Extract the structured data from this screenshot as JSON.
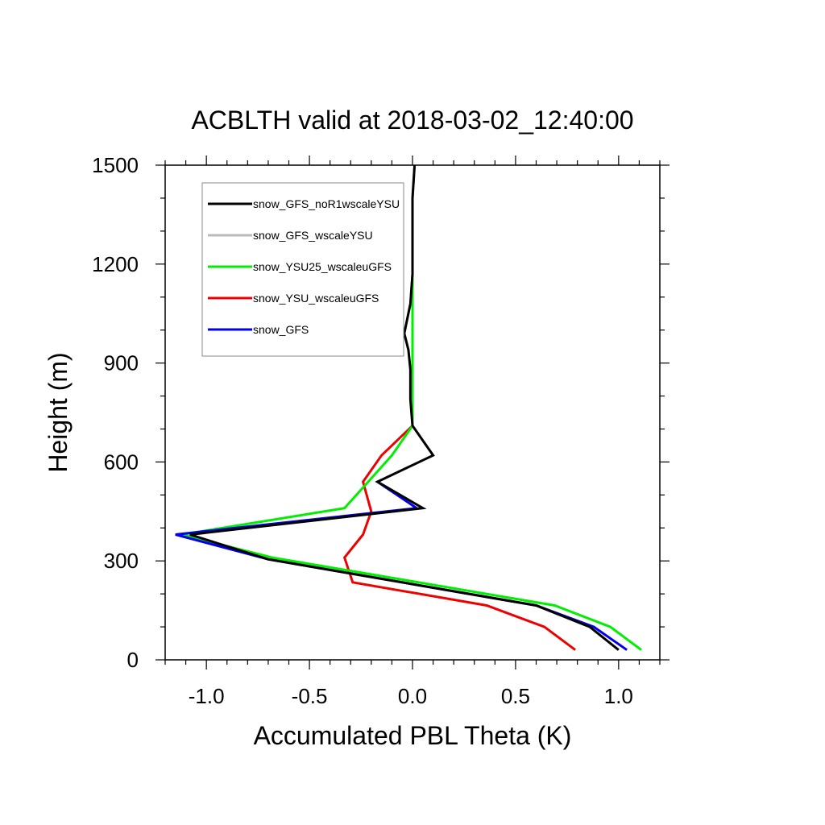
{
  "chart_data": {
    "type": "line",
    "title": "ACBLTH valid at 2018-03-02_12:40:00",
    "xlabel": "Accumulated PBL Theta (K)",
    "ylabel": "Height (m)",
    "xlim": [
      -1.2,
      1.2
    ],
    "ylim": [
      0,
      1500
    ],
    "xticks": [
      -1.0,
      -0.5,
      0.0,
      0.5,
      1.0
    ],
    "xtick_labels": [
      "-1.0",
      "-0.5",
      "0.0",
      "0.5",
      "1.0"
    ],
    "yticks": [
      0,
      300,
      600,
      900,
      1200,
      1500
    ],
    "ytick_labels": [
      "0",
      "300",
      "600",
      "900",
      "1200",
      "1500"
    ],
    "legend_position": "top-left",
    "series": [
      {
        "name": "snow_GFS_noR1wscaleYSU",
        "color": "#000000",
        "x": [
          1.0,
          0.86,
          0.6,
          -0.7,
          -1.08,
          0.05,
          -0.17,
          0.1,
          0.0,
          -0.01,
          -0.01,
          -0.02,
          -0.04,
          -0.01,
          0.0,
          0.0,
          0.0,
          0.01
        ],
        "y": [
          30,
          100,
          165,
          305,
          380,
          460,
          540,
          620,
          710,
          790,
          880,
          940,
          990,
          1080,
          1170,
          1300,
          1400,
          1500
        ]
      },
      {
        "name": "snow_GFS_wscaleYSU",
        "color": "#bbbbbb",
        "x": [
          1.0,
          0.86,
          0.6,
          -0.7,
          -1.08,
          0.05,
          -0.17,
          0.1,
          0.0,
          -0.01,
          -0.01,
          -0.02,
          -0.04,
          -0.01,
          0.0,
          0.0,
          0.0,
          0.01
        ],
        "y": [
          30,
          100,
          165,
          305,
          380,
          460,
          540,
          620,
          710,
          790,
          880,
          940,
          990,
          1080,
          1170,
          1300,
          1400,
          1500
        ]
      },
      {
        "name": "snow_YSU25_wscaleuGFS",
        "color": "#00ee00",
        "x": [
          1.11,
          0.96,
          0.69,
          -0.68,
          -1.12,
          -0.33,
          -0.1,
          0.0,
          0.0,
          0.0,
          0.0,
          0.0,
          0.0,
          0.0,
          0.0
        ],
        "y": [
          30,
          100,
          165,
          310,
          380,
          460,
          620,
          710,
          800,
          900,
          1000,
          1100,
          1200,
          1300,
          1400
        ]
      },
      {
        "name": "snow_YSU_wscaleuGFS",
        "color": "#ee0000",
        "x": [
          0.79,
          0.64,
          0.36,
          -0.29,
          -0.33,
          -0.24,
          -0.2,
          -0.24,
          -0.15,
          0.0
        ],
        "y": [
          30,
          100,
          165,
          235,
          310,
          380,
          450,
          540,
          620,
          710
        ]
      },
      {
        "name": "snow_GFS",
        "color": "#0000ee",
        "x": [
          1.04,
          0.88,
          0.6,
          -0.7,
          -1.15,
          0.02,
          -0.17
        ],
        "y": [
          30,
          100,
          165,
          305,
          380,
          460,
          540
        ]
      }
    ]
  }
}
